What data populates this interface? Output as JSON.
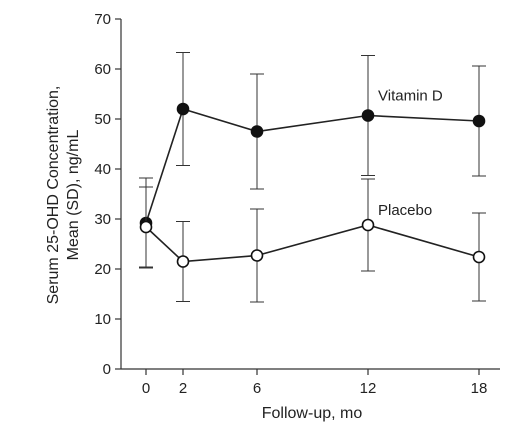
{
  "chart_data": {
    "type": "line",
    "title": "",
    "xlabel": "Follow-up, mo",
    "ylabel_line1": "Serum 25-OHD Concentration,",
    "ylabel_line2": "Mean (SD), ng/mL",
    "x_ticks": [
      "0",
      "2",
      "6",
      "12",
      "18"
    ],
    "y_ticks": [
      "0",
      "10",
      "20",
      "30",
      "40",
      "50",
      "60",
      "70"
    ],
    "xlim": [
      -1.5,
      19
    ],
    "ylim": [
      0,
      70
    ],
    "grid": false,
    "x": [
      0,
      2,
      6,
      12,
      18
    ],
    "series": [
      {
        "name": "Vitamin D",
        "marker": "filled-circle",
        "color": "#111111",
        "values": [
          29.2,
          52.0,
          47.5,
          50.7,
          49.6
        ],
        "sd": [
          9.0,
          11.3,
          11.5,
          12.0,
          11.0
        ]
      },
      {
        "name": "Placebo",
        "marker": "open-circle",
        "color": "#111111",
        "values": [
          28.4,
          21.5,
          22.7,
          28.8,
          22.4
        ],
        "sd": [
          8.0,
          8.0,
          9.3,
          9.2,
          8.8
        ]
      }
    ]
  }
}
